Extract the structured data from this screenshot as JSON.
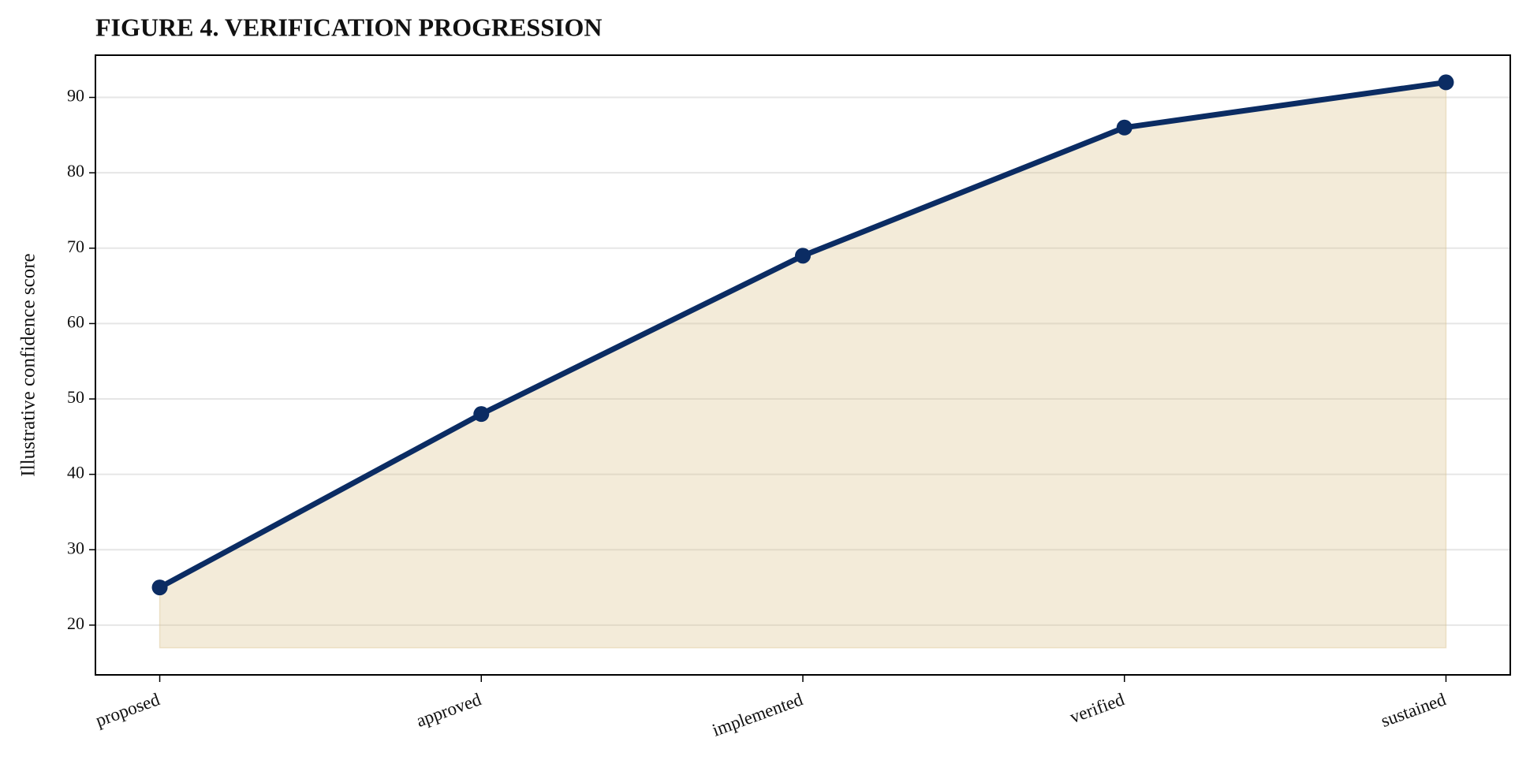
{
  "chart_data": {
    "type": "line",
    "title": "FIGURE 4. VERIFICATION PROGRESSION",
    "y_label": "Illustrative confidence score",
    "categories": [
      "proposed",
      "approved",
      "implemented",
      "verified",
      "sustained"
    ],
    "values": [
      25,
      48,
      69,
      86,
      92
    ],
    "color": "#0b2c63",
    "fill_color": "#d9c08a",
    "fill_to": 17,
    "ylim": [
      13.4,
      95.6
    ],
    "yticks": [
      20,
      30,
      40,
      50,
      60,
      70,
      80,
      90
    ],
    "grid": true
  }
}
